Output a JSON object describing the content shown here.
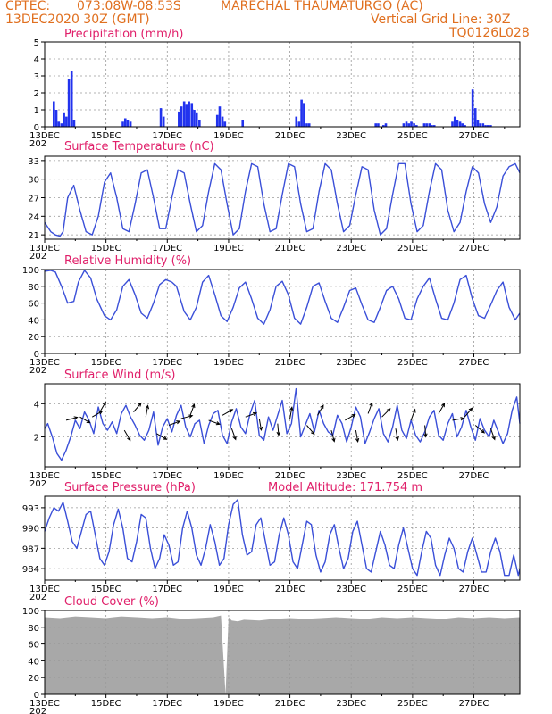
{
  "header": {
    "source": "CPTEC:",
    "coords": "073:08W-08:53S",
    "station": "MARECHAL THAUMATURGO (AC)",
    "date": "13DEC2020 30Z (GMT)",
    "grid_note": "Vertical Grid Line: 30Z",
    "code": "TQ0126L028"
  },
  "colors": {
    "header": "#e07020",
    "title": "#e0206a",
    "line": "#3a4fd8",
    "bar": "#2233ee",
    "cloud": "#a8a8a8"
  },
  "x_axis": {
    "tick_labels": [
      "13DEC",
      "15DEC",
      "17DEC",
      "19DEC",
      "21DEC",
      "23DEC",
      "25DEC",
      "27DEC"
    ],
    "tick_days": [
      0,
      2,
      4,
      6,
      8,
      10,
      12,
      14
    ],
    "stub_label": "202",
    "range_days": [
      0,
      15.5
    ]
  },
  "chart_data": [
    {
      "id": "precip",
      "type": "bar",
      "title": "Precipitation (mm/h)",
      "ylim": [
        0,
        5
      ],
      "yticks": [
        0,
        1,
        2,
        3,
        4,
        5
      ],
      "grid": true,
      "x": [
        0.3,
        0.38,
        0.46,
        0.55,
        0.63,
        0.71,
        0.79,
        0.88,
        0.96,
        2.55,
        2.63,
        2.71,
        2.8,
        3.79,
        3.88,
        4.38,
        4.46,
        4.55,
        4.63,
        4.71,
        4.8,
        4.88,
        4.96,
        5.05,
        5.63,
        5.71,
        5.8,
        5.88,
        6.46,
        8.21,
        8.3,
        8.38,
        8.46,
        8.55,
        8.63,
        10.8,
        10.88,
        11.05,
        11.13,
        11.71,
        11.8,
        11.88,
        11.96,
        12.05,
        12.13,
        12.38,
        12.46,
        12.55,
        12.63,
        12.71,
        13.3,
        13.38,
        13.46,
        13.55,
        13.63,
        13.71,
        13.96,
        14.05,
        14.13,
        14.21,
        14.3,
        14.38,
        14.46,
        14.55
      ],
      "values": [
        1.5,
        1.0,
        0.3,
        0.2,
        0.8,
        0.6,
        2.8,
        3.3,
        0.4,
        0.3,
        0.5,
        0.4,
        0.3,
        1.1,
        0.6,
        0.9,
        1.2,
        1.5,
        1.3,
        1.5,
        1.4,
        1.0,
        0.8,
        0.4,
        0.7,
        1.2,
        0.6,
        0.3,
        0.4,
        0.6,
        0.3,
        1.6,
        1.4,
        0.2,
        0.2,
        0.2,
        0.2,
        0.1,
        0.2,
        0.2,
        0.3,
        0.2,
        0.3,
        0.2,
        0.1,
        0.2,
        0.2,
        0.2,
        0.1,
        0.1,
        0.3,
        0.6,
        0.4,
        0.3,
        0.2,
        0.1,
        2.2,
        1.1,
        0.4,
        0.2,
        0.2,
        0.1,
        0.1,
        0.1
      ]
    },
    {
      "id": "temp",
      "type": "line",
      "title": "Surface Temperature (nC)",
      "ylim": [
        20.3,
        33.7
      ],
      "yticks": [
        21,
        24,
        27,
        30,
        33
      ],
      "grid": true,
      "x": [
        0.0,
        0.2,
        0.35,
        0.5,
        0.6,
        0.75,
        0.95,
        1.15,
        1.35,
        1.55,
        1.75,
        1.95,
        2.15,
        2.35,
        2.55,
        2.75,
        2.95,
        3.15,
        3.35,
        3.55,
        3.75,
        3.95,
        4.15,
        4.35,
        4.55,
        4.75,
        4.95,
        5.15,
        5.35,
        5.55,
        5.75,
        5.95,
        6.15,
        6.35,
        6.55,
        6.75,
        6.95,
        7.15,
        7.35,
        7.55,
        7.75,
        7.95,
        8.15,
        8.35,
        8.55,
        8.75,
        8.95,
        9.15,
        9.35,
        9.55,
        9.75,
        9.95,
        10.15,
        10.35,
        10.55,
        10.75,
        10.95,
        11.15,
        11.35,
        11.55,
        11.75,
        11.95,
        12.15,
        12.35,
        12.55,
        12.75,
        12.95,
        13.15,
        13.35,
        13.55,
        13.75,
        13.95,
        14.15,
        14.35,
        14.55,
        14.75,
        14.95,
        15.15,
        15.35,
        15.5
      ],
      "values": [
        23.0,
        21.5,
        21.0,
        20.8,
        21.5,
        27.0,
        29.0,
        25.0,
        21.5,
        21.0,
        24.0,
        29.5,
        31.0,
        27.0,
        22.0,
        21.5,
        26.0,
        31.0,
        31.5,
        27.0,
        22.0,
        22.0,
        27.0,
        31.5,
        31.0,
        26.0,
        21.5,
        22.5,
        28.0,
        32.5,
        31.5,
        26.0,
        21.0,
        22.0,
        28.0,
        32.5,
        32.0,
        26.0,
        21.5,
        22.0,
        27.5,
        32.5,
        32.0,
        26.0,
        21.5,
        22.0,
        28.0,
        32.5,
        31.5,
        26.0,
        21.5,
        22.5,
        27.5,
        32.0,
        31.5,
        25.0,
        21.0,
        22.0,
        27.5,
        32.5,
        32.5,
        26.0,
        21.5,
        22.5,
        28.0,
        32.5,
        31.5,
        25.0,
        21.5,
        23.0,
        28.0,
        32.0,
        31.0,
        26.0,
        23.0,
        25.5,
        30.5,
        32.0,
        32.5,
        31.0
      ]
    },
    {
      "id": "rh",
      "type": "line",
      "title": "Relative Humidity (%)",
      "ylim": [
        0,
        100
      ],
      "yticks": [
        0,
        20,
        40,
        60,
        80,
        100
      ],
      "grid": true,
      "x": [
        0.0,
        0.2,
        0.35,
        0.55,
        0.75,
        0.95,
        1.1,
        1.3,
        1.5,
        1.7,
        1.95,
        2.15,
        2.35,
        2.55,
        2.75,
        2.95,
        3.15,
        3.35,
        3.55,
        3.75,
        3.95,
        4.15,
        4.3,
        4.55,
        4.75,
        4.95,
        5.15,
        5.35,
        5.55,
        5.75,
        5.95,
        6.15,
        6.35,
        6.55,
        6.75,
        6.95,
        7.15,
        7.35,
        7.55,
        7.75,
        7.95,
        8.15,
        8.35,
        8.55,
        8.75,
        8.95,
        9.15,
        9.35,
        9.55,
        9.75,
        9.95,
        10.15,
        10.35,
        10.55,
        10.75,
        10.95,
        11.15,
        11.35,
        11.55,
        11.75,
        11.95,
        12.15,
        12.35,
        12.55,
        12.75,
        12.95,
        13.15,
        13.35,
        13.55,
        13.75,
        13.95,
        14.15,
        14.35,
        14.55,
        14.75,
        14.95,
        15.15,
        15.35,
        15.5
      ],
      "values": [
        98,
        99,
        97,
        80,
        60,
        62,
        85,
        99,
        90,
        65,
        45,
        40,
        52,
        80,
        88,
        70,
        48,
        42,
        60,
        82,
        88,
        85,
        80,
        50,
        40,
        55,
        85,
        93,
        70,
        45,
        38,
        55,
        78,
        85,
        65,
        42,
        35,
        52,
        80,
        86,
        70,
        42,
        35,
        55,
        80,
        84,
        62,
        42,
        37,
        55,
        75,
        78,
        58,
        40,
        37,
        55,
        75,
        80,
        65,
        42,
        40,
        65,
        80,
        90,
        65,
        42,
        40,
        60,
        88,
        93,
        65,
        45,
        42,
        58,
        75,
        85,
        55,
        40,
        48
      ]
    },
    {
      "id": "wind",
      "type": "line",
      "title": "Surface Wind (m/s)",
      "ylim": [
        0.2,
        5.2
      ],
      "yticks": [
        2,
        4
      ],
      "grid": true,
      "x": [
        0.0,
        0.1,
        0.25,
        0.4,
        0.55,
        0.7,
        0.85,
        1.0,
        1.15,
        1.3,
        1.45,
        1.6,
        1.75,
        1.9,
        2.05,
        2.2,
        2.35,
        2.5,
        2.65,
        2.8,
        2.95,
        3.1,
        3.25,
        3.4,
        3.55,
        3.7,
        3.85,
        4.0,
        4.15,
        4.3,
        4.45,
        4.6,
        4.75,
        4.9,
        5.05,
        5.2,
        5.35,
        5.5,
        5.65,
        5.8,
        5.95,
        6.1,
        6.25,
        6.4,
        6.55,
        6.7,
        6.85,
        7.0,
        7.15,
        7.3,
        7.45,
        7.6,
        7.75,
        7.9,
        8.05,
        8.2,
        8.35,
        8.5,
        8.65,
        8.8,
        8.95,
        9.1,
        9.25,
        9.4,
        9.55,
        9.7,
        9.85,
        10.0,
        10.15,
        10.3,
        10.45,
        10.6,
        10.75,
        10.9,
        11.05,
        11.2,
        11.35,
        11.5,
        11.65,
        11.8,
        11.95,
        12.1,
        12.25,
        12.4,
        12.55,
        12.7,
        12.85,
        13.0,
        13.15,
        13.3,
        13.45,
        13.6,
        13.75,
        13.9,
        14.05,
        14.2,
        14.35,
        14.5,
        14.65,
        14.8,
        14.95,
        15.1,
        15.25,
        15.4,
        15.5
      ],
      "values": [
        2.5,
        2.8,
        2.0,
        1.0,
        0.6,
        1.2,
        2.0,
        3.0,
        2.5,
        3.5,
        3.0,
        2.2,
        3.8,
        2.8,
        2.4,
        2.9,
        2.2,
        3.4,
        3.9,
        3.2,
        2.7,
        2.1,
        1.8,
        2.4,
        3.5,
        1.5,
        2.6,
        3.1,
        2.3,
        3.3,
        3.9,
        2.6,
        2.0,
        2.8,
        3.0,
        1.6,
        2.7,
        3.4,
        3.6,
        2.1,
        1.6,
        2.9,
        3.7,
        2.6,
        2.2,
        3.4,
        4.2,
        2.1,
        1.8,
        3.2,
        2.4,
        3.3,
        4.2,
        2.2,
        2.8,
        4.9,
        2.0,
        2.7,
        3.4,
        2.3,
        3.6,
        2.8,
        2.3,
        2.1,
        3.3,
        2.8,
        1.7,
        2.6,
        3.8,
        3.2,
        1.6,
        2.3,
        3.1,
        3.7,
        2.2,
        1.7,
        2.6,
        3.9,
        2.4,
        1.9,
        3.0,
        2.1,
        1.7,
        2.3,
        3.2,
        3.6,
        2.1,
        1.8,
        2.8,
        3.4,
        2.0,
        2.6,
        3.6,
        2.6,
        1.8,
        3.1,
        2.4,
        2.0,
        3.0,
        2.3,
        1.6,
        2.2,
        3.6,
        4.4,
        2.8
      ],
      "arrows": [
        {
          "day": 0.7,
          "speed": 3.0,
          "dir_deg": 75
        },
        {
          "day": 1.15,
          "speed": 3.2,
          "dir_deg": 120
        },
        {
          "day": 1.55,
          "speed": 3.2,
          "dir_deg": 60
        },
        {
          "day": 1.8,
          "speed": 3.5,
          "dir_deg": 30
        },
        {
          "day": 2.6,
          "speed": 2.4,
          "dir_deg": 150
        },
        {
          "day": 2.9,
          "speed": 3.5,
          "dir_deg": 40
        },
        {
          "day": 3.3,
          "speed": 3.2,
          "dir_deg": 10
        },
        {
          "day": 3.65,
          "speed": 2.2,
          "dir_deg": 120
        },
        {
          "day": 4.05,
          "speed": 2.7,
          "dir_deg": 70
        },
        {
          "day": 4.45,
          "speed": 3.1,
          "dir_deg": 75
        },
        {
          "day": 4.75,
          "speed": 3.3,
          "dir_deg": 20
        },
        {
          "day": 5.35,
          "speed": 3.0,
          "dir_deg": 110
        },
        {
          "day": 5.8,
          "speed": 3.3,
          "dir_deg": 60
        },
        {
          "day": 6.1,
          "speed": 2.5,
          "dir_deg": 160
        },
        {
          "day": 6.55,
          "speed": 3.2,
          "dir_deg": 70
        },
        {
          "day": 7.0,
          "speed": 3.1,
          "dir_deg": 170
        },
        {
          "day": 7.6,
          "speed": 2.8,
          "dir_deg": 175
        },
        {
          "day": 8.0,
          "speed": 3.1,
          "dir_deg": 10
        },
        {
          "day": 8.55,
          "speed": 2.7,
          "dir_deg": 140
        },
        {
          "day": 8.9,
          "speed": 3.3,
          "dir_deg": 30
        },
        {
          "day": 9.35,
          "speed": 2.4,
          "dir_deg": 165
        },
        {
          "day": 9.8,
          "speed": 3.0,
          "dir_deg": 60
        },
        {
          "day": 10.15,
          "speed": 2.4,
          "dir_deg": 170
        },
        {
          "day": 10.55,
          "speed": 3.4,
          "dir_deg": 20
        },
        {
          "day": 11.0,
          "speed": 3.2,
          "dir_deg": 45
        },
        {
          "day": 11.45,
          "speed": 2.5,
          "dir_deg": 170
        },
        {
          "day": 11.95,
          "speed": 3.0,
          "dir_deg": 20
        },
        {
          "day": 12.4,
          "speed": 2.7,
          "dir_deg": 175
        },
        {
          "day": 12.85,
          "speed": 3.4,
          "dir_deg": 30
        },
        {
          "day": 13.3,
          "speed": 3.0,
          "dir_deg": 80
        },
        {
          "day": 13.7,
          "speed": 3.2,
          "dir_deg": 40
        },
        {
          "day": 14.05,
          "speed": 2.7,
          "dir_deg": 130
        },
        {
          "day": 14.55,
          "speed": 2.5,
          "dir_deg": 160
        }
      ]
    },
    {
      "id": "pres",
      "type": "line",
      "title": "Surface Pressure (hPa)",
      "subtitle": "Model Altitude: 171.754 m",
      "ylim": [
        982.3,
        994.7
      ],
      "yticks": [
        984,
        987,
        990,
        993
      ],
      "grid": true,
      "x": [
        0.0,
        0.15,
        0.3,
        0.45,
        0.6,
        0.75,
        0.9,
        1.05,
        1.2,
        1.35,
        1.5,
        1.65,
        1.8,
        1.95,
        2.1,
        2.25,
        2.4,
        2.55,
        2.7,
        2.85,
        3.0,
        3.15,
        3.3,
        3.45,
        3.6,
        3.75,
        3.9,
        4.05,
        4.2,
        4.35,
        4.5,
        4.65,
        4.8,
        4.95,
        5.1,
        5.25,
        5.4,
        5.55,
        5.7,
        5.85,
        6.0,
        6.15,
        6.3,
        6.45,
        6.6,
        6.75,
        6.9,
        7.05,
        7.2,
        7.35,
        7.5,
        7.65,
        7.8,
        7.95,
        8.1,
        8.25,
        8.4,
        8.55,
        8.7,
        8.85,
        9.0,
        9.15,
        9.3,
        9.45,
        9.6,
        9.75,
        9.9,
        10.05,
        10.2,
        10.35,
        10.5,
        10.65,
        10.8,
        10.95,
        11.1,
        11.25,
        11.4,
        11.55,
        11.7,
        11.85,
        12.0,
        12.15,
        12.3,
        12.45,
        12.6,
        12.75,
        12.9,
        13.05,
        13.2,
        13.35,
        13.5,
        13.65,
        13.8,
        13.95,
        14.1,
        14.25,
        14.4,
        14.55,
        14.7,
        14.85,
        15.0,
        15.15,
        15.3,
        15.45,
        15.5
      ],
      "values": [
        989.5,
        991.5,
        993.0,
        992.5,
        993.8,
        991.0,
        988.0,
        987.0,
        989.5,
        992.0,
        992.5,
        989.0,
        985.5,
        984.5,
        986.5,
        990.5,
        992.8,
        990.0,
        985.5,
        985.0,
        988.0,
        992.0,
        991.5,
        987.0,
        984.0,
        985.5,
        989.0,
        987.5,
        984.5,
        985.0,
        990.0,
        992.5,
        990.0,
        986.0,
        984.5,
        987.0,
        990.5,
        988.0,
        984.5,
        985.5,
        990.5,
        993.5,
        994.2,
        989.0,
        986.0,
        986.5,
        990.5,
        991.5,
        988.0,
        984.5,
        985.0,
        989.0,
        991.5,
        989.0,
        985.0,
        984.0,
        987.5,
        991.0,
        990.5,
        986.0,
        983.5,
        985.0,
        989.0,
        990.5,
        987.0,
        984.0,
        985.5,
        989.5,
        991.0,
        987.5,
        984.0,
        983.5,
        986.5,
        989.5,
        987.5,
        984.5,
        984.0,
        987.5,
        990.0,
        987.0,
        984.0,
        983.0,
        986.5,
        989.5,
        988.5,
        984.5,
        983.0,
        986.0,
        988.5,
        987.0,
        984.0,
        983.5,
        986.5,
        988.5,
        986.0,
        983.5,
        983.5,
        986.5,
        988.5,
        986.5,
        983.0,
        983.0,
        986.0,
        983.0,
        984.0
      ]
    },
    {
      "id": "cloud",
      "type": "area",
      "title": "Cloud Cover (%)",
      "ylim": [
        0,
        100
      ],
      "yticks": [
        0,
        20,
        40,
        60,
        80,
        100
      ],
      "grid": true,
      "x": [
        0.0,
        0.5,
        1.0,
        1.5,
        2.0,
        2.5,
        3.0,
        3.5,
        4.0,
        4.5,
        5.0,
        5.5,
        5.75,
        5.9,
        6.0,
        6.1,
        6.3,
        6.5,
        7.0,
        7.5,
        8.0,
        8.5,
        9.0,
        9.5,
        10.0,
        10.5,
        11.0,
        11.5,
        12.0,
        12.5,
        13.0,
        13.5,
        14.0,
        14.5,
        15.0,
        15.5
      ],
      "values": [
        92,
        91,
        93,
        92,
        91,
        93,
        92,
        91,
        92,
        90,
        91,
        92,
        94,
        0,
        92,
        88,
        87,
        89,
        88,
        90,
        91,
        90,
        91,
        92,
        91,
        90,
        92,
        91,
        92,
        91,
        90,
        92,
        91,
        92,
        91,
        92
      ]
    }
  ]
}
